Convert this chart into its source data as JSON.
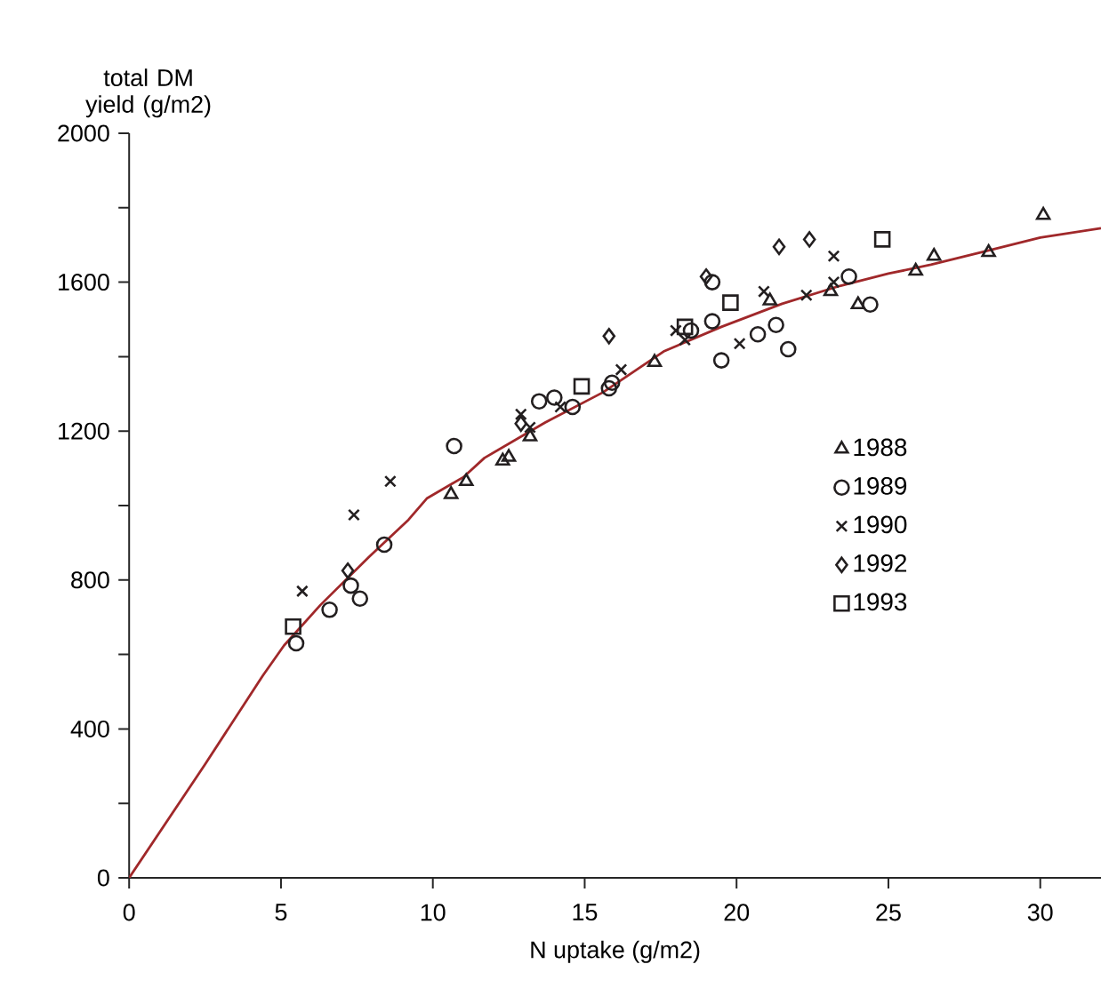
{
  "chart_data": {
    "type": "scatter",
    "xlabel": "N uptake (g/m2)",
    "ylabel": "total DM yield (g/m2)",
    "xlim": [
      0,
      32
    ],
    "ylim": [
      0,
      2000
    ],
    "xticks": [
      0,
      5,
      10,
      15,
      20,
      25,
      30
    ],
    "yticks": [
      0,
      {
        "value": 200,
        "label": null
      },
      400,
      {
        "value": 600,
        "label": null
      },
      800,
      {
        "value": 1000,
        "label": null
      },
      1200,
      {
        "value": 1400,
        "label": null
      },
      1600,
      {
        "value": 1800,
        "label": null
      },
      2000
    ],
    "legend": "right",
    "grid": false,
    "series": [
      {
        "name": "1988",
        "marker": "triangle",
        "color": "#231f20",
        "x": [
          10.6,
          11.1,
          12.3,
          12.5,
          13.2,
          17.3,
          21.1,
          23.1,
          24.0,
          25.9,
          26.5,
          28.3,
          30.1
        ],
        "values": [
          1030,
          1065,
          1120,
          1130,
          1185,
          1385,
          1550,
          1575,
          1540,
          1630,
          1670,
          1680,
          1780
        ]
      },
      {
        "name": "1989",
        "marker": "circle",
        "color": "#231f20",
        "x": [
          5.5,
          6.6,
          7.3,
          7.6,
          8.4,
          10.7,
          13.5,
          14.0,
          14.6,
          15.8,
          15.9,
          18.5,
          19.2,
          19.2,
          19.5,
          20.7,
          21.3,
          21.7,
          23.7,
          24.4
        ],
        "values": [
          630,
          720,
          785,
          750,
          895,
          1160,
          1280,
          1290,
          1265,
          1315,
          1330,
          1470,
          1495,
          1600,
          1390,
          1460,
          1485,
          1420,
          1615,
          1540
        ]
      },
      {
        "name": "1990",
        "marker": "cross",
        "color": "#231f20",
        "x": [
          5.7,
          7.4,
          8.6,
          12.9,
          13.2,
          14.2,
          16.2,
          18.0,
          18.3,
          20.1,
          20.9,
          22.3,
          23.2,
          23.2
        ],
        "values": [
          770,
          975,
          1065,
          1245,
          1210,
          1265,
          1365,
          1470,
          1445,
          1435,
          1575,
          1565,
          1600,
          1670
        ]
      },
      {
        "name": "1992",
        "marker": "diamond",
        "color": "#231f20",
        "x": [
          7.2,
          12.9,
          15.8,
          19.0,
          21.4,
          22.4
        ],
        "values": [
          825,
          1220,
          1455,
          1615,
          1695,
          1715
        ]
      },
      {
        "name": "1993",
        "marker": "square",
        "color": "#231f20",
        "x": [
          5.4,
          14.9,
          18.3,
          19.8,
          24.8
        ],
        "values": [
          675,
          1320,
          1480,
          1545,
          1715
        ]
      },
      {
        "type": "line",
        "marker": "none",
        "color": "#a0282a",
        "x": [
          0,
          2.5,
          4.4,
          5.1,
          6.3,
          7.9,
          9.2,
          9.8,
          11.0,
          11.7,
          13.7,
          15.6,
          17.6,
          19.5,
          21.5,
          23.4,
          25.0,
          26.4,
          28.3,
          30.0,
          32.0
        ],
        "values": [
          0,
          305,
          543,
          624,
          733,
          862,
          962,
          1019,
          1076,
          1128,
          1223,
          1304,
          1414,
          1480,
          1542,
          1590,
          1623,
          1647,
          1685,
          1720,
          1745
        ]
      }
    ]
  }
}
